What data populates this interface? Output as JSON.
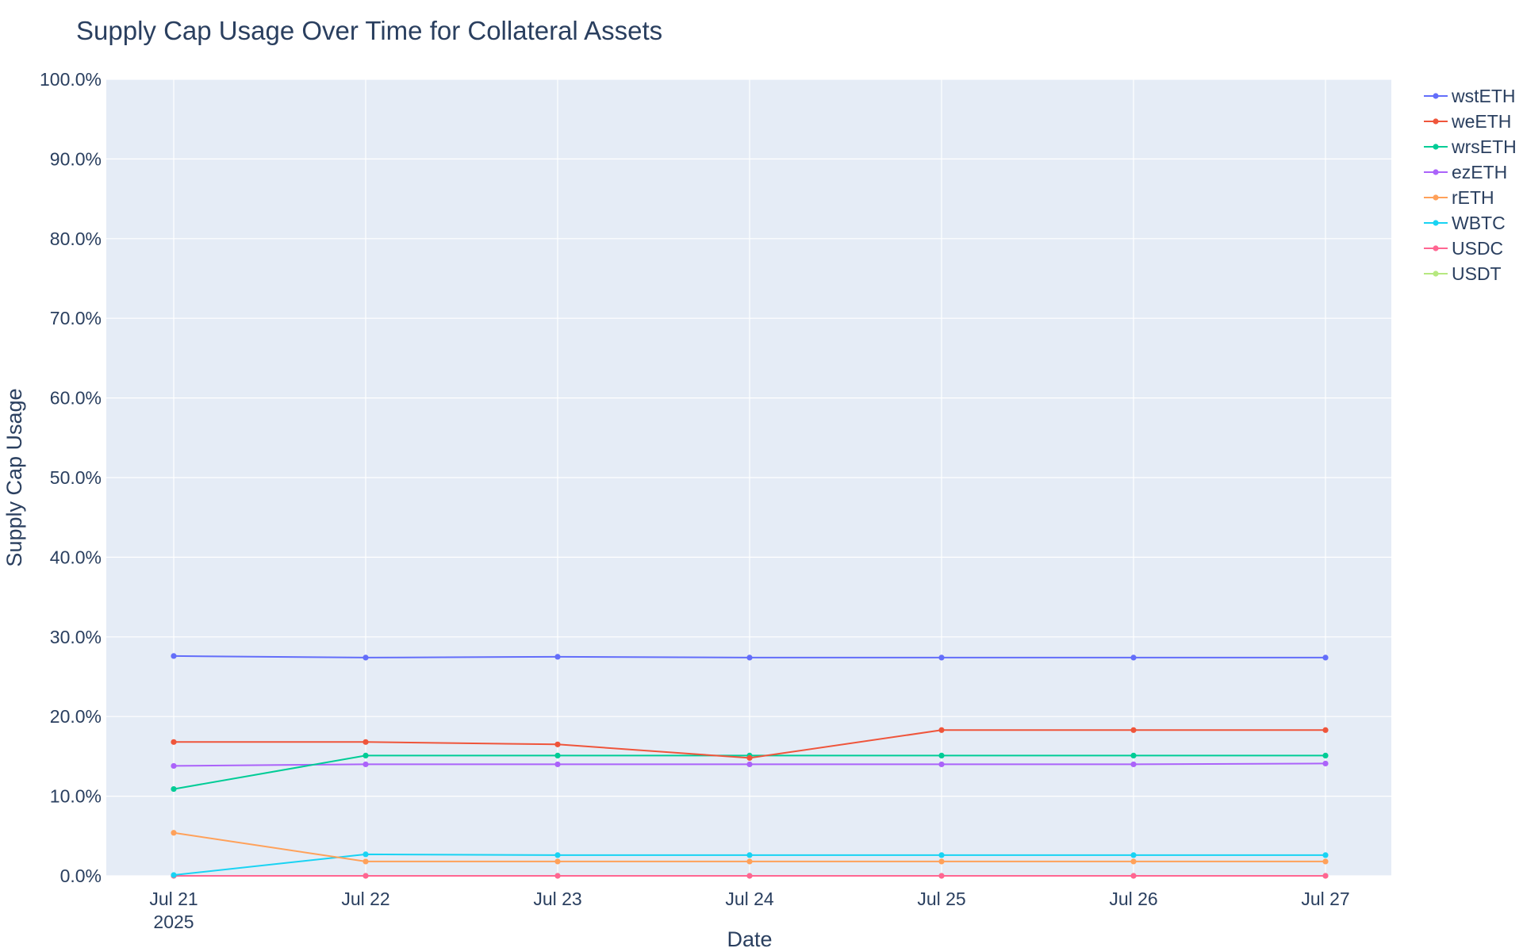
{
  "chart_data": {
    "type": "line",
    "title": "Supply Cap Usage Over Time for Collateral Assets",
    "xlabel": "Date",
    "ylabel": "Supply Cap Usage",
    "x": [
      "2025-07-21",
      "2025-07-22",
      "2025-07-23",
      "2025-07-24",
      "2025-07-25",
      "2025-07-26",
      "2025-07-27"
    ],
    "x_tick_labels": [
      "Jul 21",
      "Jul 22",
      "Jul 23",
      "Jul 24",
      "Jul 25",
      "Jul 26",
      "Jul 27"
    ],
    "x_tick_year": "2025",
    "ylim": [
      0,
      100
    ],
    "y_ticks": [
      0,
      10,
      20,
      30,
      40,
      50,
      60,
      70,
      80,
      90,
      100
    ],
    "y_tick_labels": [
      "0.0%",
      "10.0%",
      "20.0%",
      "30.0%",
      "40.0%",
      "50.0%",
      "60.0%",
      "70.0%",
      "80.0%",
      "90.0%",
      "100.0%"
    ],
    "grid": true,
    "legend_position": "top-right",
    "series": [
      {
        "name": "wstETH",
        "color": "#636efa",
        "values": [
          27.6,
          27.4,
          27.5,
          27.4,
          27.4,
          27.4,
          27.4
        ]
      },
      {
        "name": "weETH",
        "color": "#ef553b",
        "values": [
          16.8,
          16.8,
          16.5,
          14.8,
          18.3,
          18.3,
          18.3
        ]
      },
      {
        "name": "wrsETH",
        "color": "#00cc96",
        "values": [
          10.9,
          15.1,
          15.1,
          15.1,
          15.1,
          15.1,
          15.1
        ]
      },
      {
        "name": "ezETH",
        "color": "#ab63fa",
        "values": [
          13.8,
          14.0,
          14.0,
          14.0,
          14.0,
          14.0,
          14.1
        ]
      },
      {
        "name": "rETH",
        "color": "#ffa15a",
        "values": [
          5.4,
          1.8,
          1.8,
          1.8,
          1.8,
          1.8,
          1.8
        ]
      },
      {
        "name": "WBTC",
        "color": "#19d3f3",
        "values": [
          0.1,
          2.7,
          2.6,
          2.6,
          2.6,
          2.6,
          2.6
        ]
      },
      {
        "name": "USDC",
        "color": "#ff6692",
        "values": [
          0,
          0,
          0,
          0,
          0,
          0,
          0
        ]
      },
      {
        "name": "USDT",
        "color": "#b6e880",
        "values": [
          0,
          0,
          0,
          0,
          0,
          0,
          0
        ]
      }
    ]
  }
}
